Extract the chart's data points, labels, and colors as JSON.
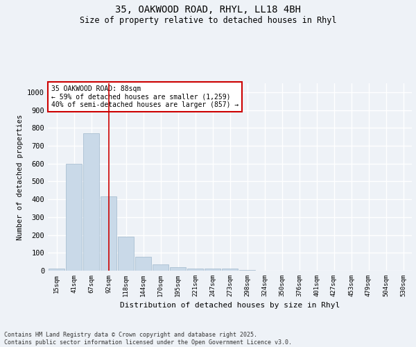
{
  "title_line1": "35, OAKWOOD ROAD, RHYL, LL18 4BH",
  "title_line2": "Size of property relative to detached houses in Rhyl",
  "xlabel": "Distribution of detached houses by size in Rhyl",
  "ylabel": "Number of detached properties",
  "categories": [
    "15sqm",
    "41sqm",
    "67sqm",
    "92sqm",
    "118sqm",
    "144sqm",
    "170sqm",
    "195sqm",
    "221sqm",
    "247sqm",
    "273sqm",
    "298sqm",
    "324sqm",
    "350sqm",
    "376sqm",
    "401sqm",
    "427sqm",
    "453sqm",
    "479sqm",
    "504sqm",
    "530sqm"
  ],
  "values": [
    13,
    600,
    770,
    415,
    190,
    77,
    35,
    18,
    12,
    10,
    13,
    5,
    0,
    0,
    0,
    0,
    0,
    0,
    0,
    0,
    0
  ],
  "bar_color": "#c9d9e8",
  "bar_edge_color": "#a0b8cc",
  "vline_x": 3,
  "vline_color": "#cc0000",
  "annotation_text": "35 OAKWOOD ROAD: 88sqm\n← 59% of detached houses are smaller (1,259)\n40% of semi-detached houses are larger (857) →",
  "annotation_box_color": "#ffffff",
  "annotation_box_edge": "#cc0000",
  "ylim": [
    0,
    1050
  ],
  "yticks": [
    0,
    100,
    200,
    300,
    400,
    500,
    600,
    700,
    800,
    900,
    1000
  ],
  "background_color": "#eef2f7",
  "grid_color": "#ffffff",
  "footer_line1": "Contains HM Land Registry data © Crown copyright and database right 2025.",
  "footer_line2": "Contains public sector information licensed under the Open Government Licence v3.0."
}
